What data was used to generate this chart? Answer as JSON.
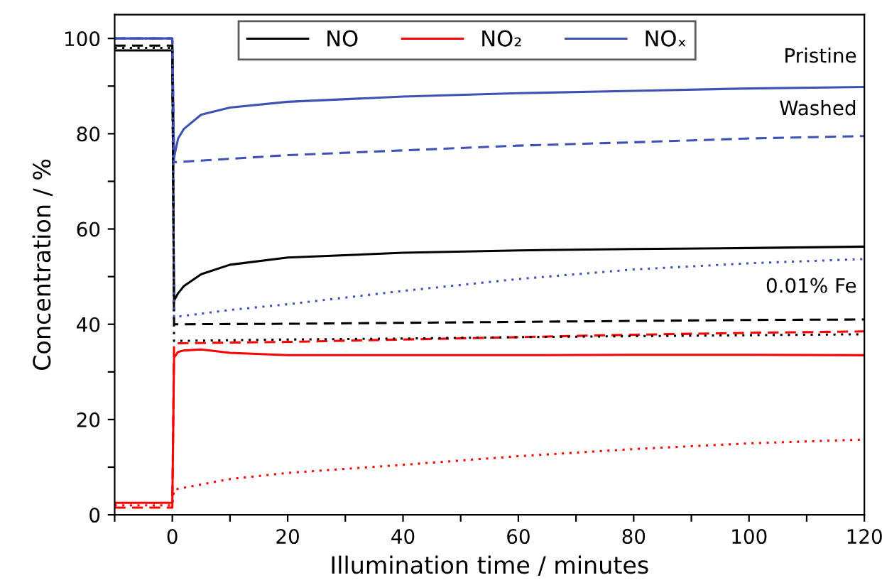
{
  "chart_data": {
    "type": "line",
    "xlabel": "Illumination time / minutes",
    "ylabel": "Concentration / %",
    "xlim": [
      -10,
      120
    ],
    "ylim": [
      0,
      105
    ],
    "xticks": [
      {
        "value": -10,
        "label": null
      },
      0,
      {
        "value": 10,
        "label": null
      },
      20,
      {
        "value": 30,
        "label": null
      },
      40,
      {
        "value": 50,
        "label": null
      },
      60,
      {
        "value": 70,
        "label": null
      },
      80,
      {
        "value": 90,
        "label": null
      },
      100,
      {
        "value": 110,
        "label": null
      },
      120
    ],
    "yticks": [
      0,
      {
        "value": 10,
        "label": null
      },
      20,
      {
        "value": 30,
        "label": null
      },
      40,
      {
        "value": 50,
        "label": null
      },
      60,
      {
        "value": 70,
        "label": null
      },
      80,
      {
        "value": 90,
        "label": null
      },
      100
    ],
    "grid": false,
    "legend": "top",
    "annotations": [
      "Pristine",
      "Washed",
      "0.01% Fe"
    ],
    "series": [
      {
        "name": "NO",
        "color": "#000000",
        "line_style": "solid",
        "x": [
          -10,
          0,
          0.3,
          1,
          2,
          5,
          10,
          20,
          40,
          60,
          80,
          100,
          120
        ],
        "values": [
          97.5,
          97.5,
          45,
          46.5,
          48,
          50.5,
          52.5,
          54,
          55,
          55.5,
          55.8,
          56,
          56.3
        ]
      },
      {
        "name": "NO₂",
        "color": "#ff0000",
        "line_style": "solid",
        "x": [
          -10,
          0,
          0.3,
          1,
          2,
          5,
          10,
          20,
          40,
          60,
          80,
          100,
          120
        ],
        "values": [
          2.5,
          2.5,
          33,
          34.2,
          34.5,
          34.7,
          34,
          33.5,
          33.5,
          33.5,
          33.6,
          33.6,
          33.5
        ]
      },
      {
        "name": "NOₓ",
        "color": "#3f51b5",
        "line_style": "solid",
        "x": [
          -10,
          0,
          0.3,
          1,
          2,
          5,
          10,
          20,
          40,
          60,
          80,
          100,
          120
        ],
        "values": [
          100,
          100,
          75,
          79,
          81,
          84,
          85.5,
          86.7,
          87.8,
          88.5,
          89,
          89.5,
          89.8
        ]
      },
      {
        "color": "#000000",
        "line_style": "dashed",
        "x": [
          -10,
          0,
          0.3,
          20,
          40,
          60,
          80,
          100,
          120
        ],
        "values": [
          98.5,
          98.5,
          40,
          40.1,
          40.3,
          40.5,
          40.7,
          40.9,
          41
        ]
      },
      {
        "color": "#ff0000",
        "line_style": "dashed",
        "x": [
          -10,
          0,
          0.3,
          20,
          40,
          60,
          80,
          100,
          120
        ],
        "values": [
          1.5,
          1.5,
          36,
          36.3,
          36.8,
          37.3,
          37.8,
          38.2,
          38.5
        ]
      },
      {
        "color": "#3f51b5",
        "line_style": "dashed",
        "x": [
          -10,
          0,
          0.3,
          20,
          40,
          60,
          80,
          100,
          120
        ],
        "values": [
          100,
          100,
          74,
          75.5,
          76.5,
          77.5,
          78.2,
          79,
          79.5
        ]
      },
      {
        "color": "#000000",
        "line_style": "dotted",
        "x": [
          -10,
          0,
          0.3,
          20,
          40,
          60,
          80,
          100,
          120
        ],
        "values": [
          98,
          98,
          36.5,
          36.8,
          37,
          37.3,
          37.5,
          37.7,
          37.9
        ]
      },
      {
        "color": "#ff0000",
        "line_style": "dotted",
        "x": [
          -10,
          0,
          0.3,
          10,
          20,
          40,
          60,
          80,
          100,
          120
        ],
        "values": [
          2,
          2,
          5.3,
          7.5,
          8.8,
          10.5,
          12.3,
          13.8,
          15,
          15.8
        ]
      },
      {
        "color": "#3f51b5",
        "line_style": "dotted",
        "x": [
          -10,
          0,
          0.3,
          10,
          20,
          40,
          60,
          80,
          100,
          120
        ],
        "values": [
          100,
          100,
          41.5,
          43,
          44.2,
          47,
          49.5,
          51.5,
          52.8,
          53.7
        ]
      }
    ]
  }
}
